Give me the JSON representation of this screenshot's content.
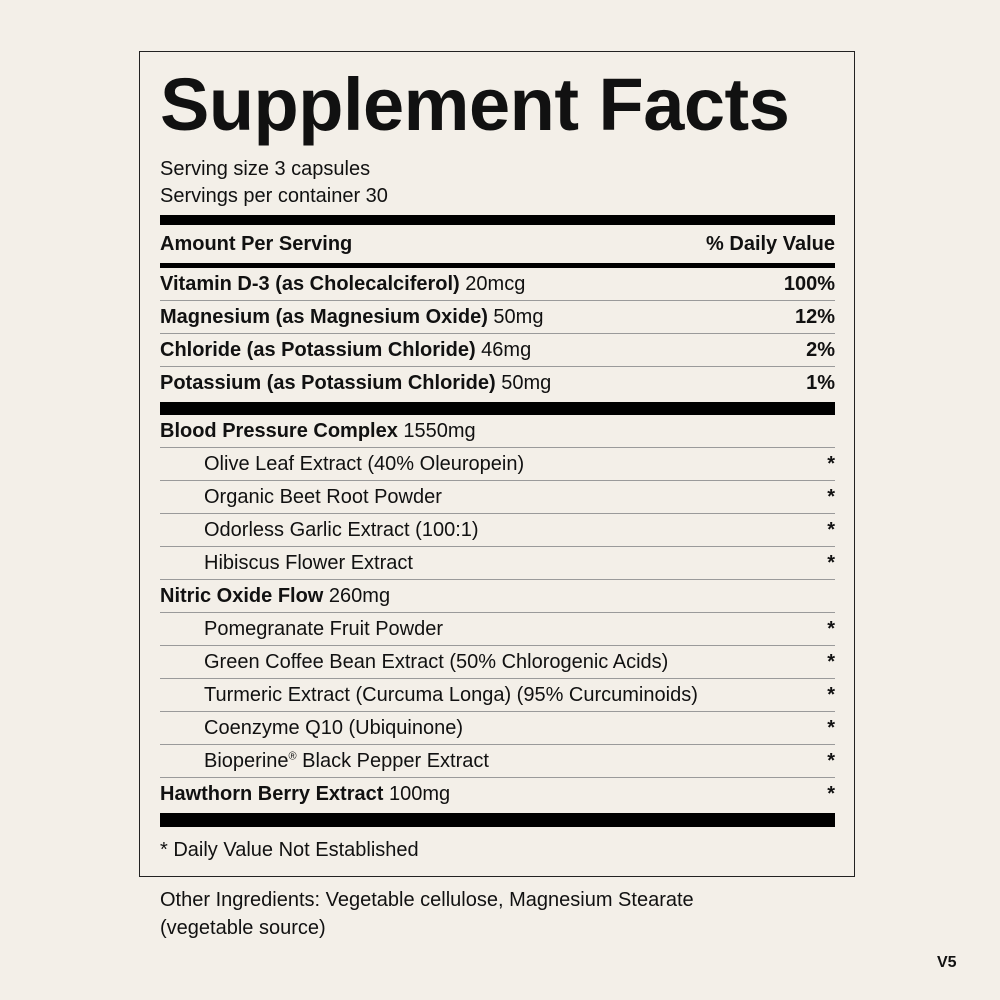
{
  "title": "Supplement Facts",
  "serving_size": "Serving size 3 capsules",
  "servings_per_container": "Servings per container 30",
  "header": {
    "amount": "Amount Per Serving",
    "daily_value": "% Daily Value"
  },
  "nutrients": [
    {
      "name": "Vitamin D-3 (as Cholecalciferol)",
      "amount": "20mcg",
      "dv": "100%"
    },
    {
      "name": "Magnesium (as Magnesium Oxide)",
      "amount": "50mg",
      "dv": "12%"
    },
    {
      "name": "Chloride (as Potassium Chloride)",
      "amount": "46mg",
      "dv": "2%"
    },
    {
      "name": "Potassium (as Potassium Chloride)",
      "amount": "50mg",
      "dv": "1%"
    }
  ],
  "blends": [
    {
      "name": "Blood Pressure Complex",
      "amount": "1550mg",
      "items": [
        {
          "name": "Olive Leaf Extract (40% Oleuropein)",
          "dv": "*"
        },
        {
          "name": "Organic Beet Root Powder",
          "dv": "*"
        },
        {
          "name": "Odorless Garlic Extract (100:1)",
          "dv": "*"
        },
        {
          "name": "Hibiscus Flower Extract",
          "dv": "*"
        }
      ]
    },
    {
      "name": "Nitric Oxide Flow",
      "amount": "260mg",
      "items": [
        {
          "name": "Pomegranate Fruit Powder",
          "dv": "*"
        },
        {
          "name": "Green Coffee Bean Extract (50% Chlorogenic Acids)",
          "dv": "*"
        },
        {
          "name": "Turmeric Extract (Curcuma Longa) (95% Curcuminoids)",
          "dv": "*"
        },
        {
          "name": "Coenzyme Q10 (Ubiquinone)",
          "dv": "*"
        }
      ]
    }
  ],
  "bioperine": {
    "name": "Bioperine",
    "mark": "®",
    "rest": " Black Pepper Extract",
    "dv": "*"
  },
  "hawthorn": {
    "name": "Hawthorn Berry Extract",
    "amount": "100mg",
    "dv": "*"
  },
  "footnote": "* Daily Value Not Established",
  "other_ingredients_1": "Other Ingredients: Vegetable cellulose, Magnesium Stearate",
  "other_ingredients_2": "(vegetable source)",
  "version": "V5"
}
